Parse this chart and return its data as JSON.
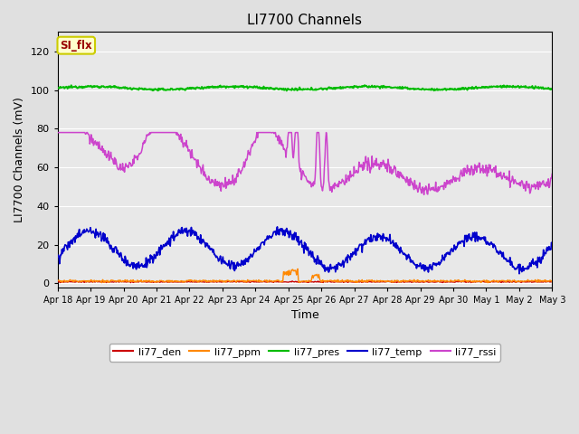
{
  "title": "LI7700 Channels",
  "ylabel": "LI7700 Channels (mV)",
  "xlabel": "Time",
  "xlim": [
    0,
    15
  ],
  "ylim": [
    -2,
    130
  ],
  "yticks": [
    0,
    20,
    40,
    60,
    80,
    100,
    120
  ],
  "xtick_labels": [
    "Apr 18",
    "Apr 19",
    "Apr 20",
    "Apr 21",
    "Apr 22",
    "Apr 23",
    "Apr 24",
    "Apr 25",
    "Apr 26",
    "Apr 27",
    "Apr 28",
    "Apr 29",
    "Apr 30",
    "May 1",
    "May 2",
    "May 3"
  ],
  "background_color": "#e0e0e0",
  "plot_bg_color": "#e8e8e8",
  "annotation_text": "SI_flx",
  "annotation_color": "#990000",
  "annotation_bg": "#ffffcc",
  "annotation_edge": "#cccc00",
  "line_colors": {
    "li77_den": "#cc0000",
    "li77_ppm": "#ff8800",
    "li77_pres": "#00bb00",
    "li77_temp": "#0000cc",
    "li77_rssi": "#cc44cc"
  },
  "figsize": [
    6.4,
    4.8
  ],
  "dpi": 100
}
